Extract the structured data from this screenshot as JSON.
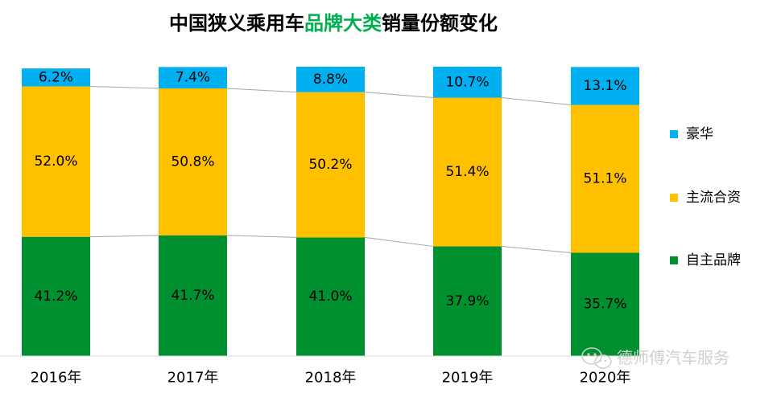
{
  "colors": {
    "luxury": "#00b0f0",
    "mainstream_jv": "#ffc000",
    "domestic": "#00902f",
    "title_accent": "#00b050",
    "title_text": "#000000",
    "connector": "#a6a6a6",
    "axis": "#d9d9d9",
    "label_text": "#000000"
  },
  "watermark": {
    "text": "德师傅汽车服务",
    "icon": "wechat-icon"
  },
  "chart_data": {
    "type": "bar",
    "stacked": true,
    "normalized_percent": true,
    "title": "中国狭义乘用车品牌大类销量份额变化",
    "title_parts": [
      {
        "text": "中国狭义乘用车",
        "accent": false
      },
      {
        "text": "品牌大类",
        "accent": true
      },
      {
        "text": "销量份额变化",
        "accent": false
      }
    ],
    "categories": [
      "2016年",
      "2017年",
      "2018年",
      "2019年",
      "2020年"
    ],
    "series": [
      {
        "name": "自主品牌",
        "color_key": "domestic",
        "values": [
          41.2,
          41.7,
          41.0,
          37.9,
          35.7
        ],
        "labels": [
          "41.2%",
          "41.7%",
          "41.0%",
          "37.9%",
          "35.7%"
        ]
      },
      {
        "name": "主流合资",
        "color_key": "mainstream_jv",
        "values": [
          52.0,
          50.8,
          50.2,
          51.4,
          51.1
        ],
        "labels": [
          "52.0%",
          "50.8%",
          "50.2%",
          "51.4%",
          "51.1%"
        ]
      },
      {
        "name": "豪华",
        "color_key": "luxury",
        "values": [
          6.2,
          7.4,
          8.8,
          10.7,
          13.1
        ],
        "labels": [
          "6.2%",
          "7.4%",
          "8.8%",
          "10.7%",
          "13.1%"
        ]
      }
    ],
    "legend": {
      "position": "right",
      "order": [
        "豪华",
        "主流合资",
        "自主品牌"
      ]
    },
    "series_lines": true,
    "ylim": [
      0,
      100
    ],
    "grid": false,
    "xlabel": "",
    "ylabel": ""
  }
}
